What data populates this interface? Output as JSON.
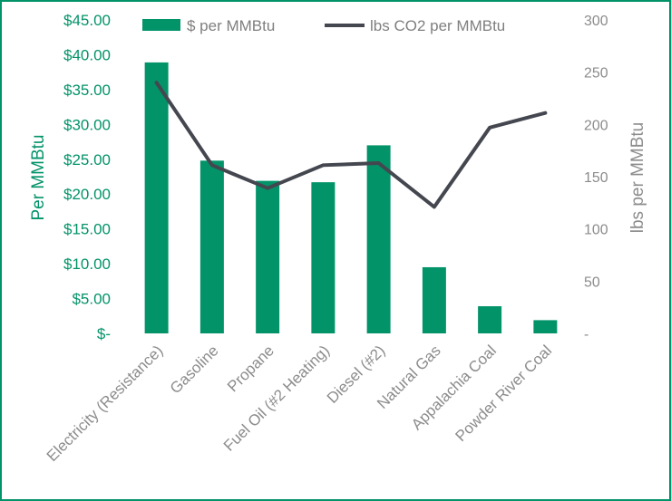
{
  "chart_data": {
    "type": "bar+line",
    "categories": [
      "Electricity (Resistance)",
      "Gasoline",
      "Propane",
      "Fuel Oil (#2 Heating)",
      "Diesel (#2)",
      "Natural Gas",
      "Appalachia Coal",
      "Powder River Coal"
    ],
    "series": [
      {
        "name": "$ per MMBtu",
        "type": "bar",
        "axis": "left",
        "color": "#039369",
        "values": [
          38.9,
          24.8,
          21.9,
          21.7,
          27.0,
          9.5,
          3.9,
          1.9
        ]
      },
      {
        "name": "lbs CO2 per MMBtu",
        "type": "line",
        "axis": "right",
        "color": "#44474f",
        "values": [
          240,
          161,
          139,
          161,
          163,
          121,
          197,
          211
        ]
      }
    ],
    "left_axis": {
      "title": "Per MMBtu",
      "ylim": [
        0,
        45
      ],
      "ticks": [
        0,
        5,
        10,
        15,
        20,
        25,
        30,
        35,
        40,
        45
      ],
      "tick_labels": [
        "$-",
        "$5.00",
        "$10.00",
        "$15.00",
        "$20.00",
        "$25.00",
        "$30.00",
        "$35.00",
        "$40.00",
        "$45.00"
      ]
    },
    "right_axis": {
      "title": "lbs per MMBtu",
      "ylim": [
        0,
        300
      ],
      "ticks": [
        0,
        50,
        100,
        150,
        200,
        250,
        300
      ],
      "tick_labels": [
        "-",
        "50",
        "100",
        "150",
        "200",
        "250",
        "300"
      ]
    },
    "legend_position": "top",
    "grid": false
  }
}
